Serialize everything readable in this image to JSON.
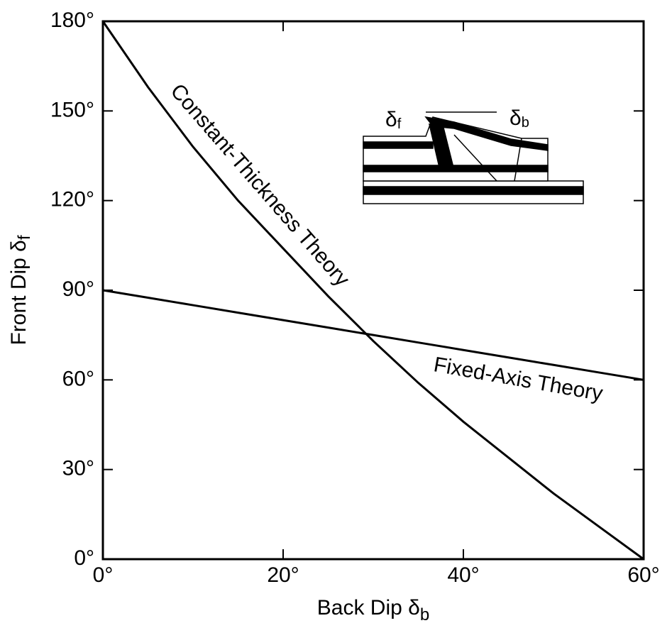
{
  "chart_data": {
    "type": "line",
    "x_label": {
      "text": "Back Dip δ",
      "subscript": "b"
    },
    "y_label": {
      "text": "Front Dip δ",
      "subscript": "f"
    },
    "x": [
      0,
      5,
      10,
      15,
      20,
      25,
      30,
      35,
      40,
      45,
      50,
      55,
      60
    ],
    "series": [
      {
        "name": "Constant-Thickness Theory",
        "color": "#000000",
        "values": [
          180,
          158,
          138,
          120,
          104,
          88,
          73,
          59,
          46,
          34,
          22,
          11,
          0
        ]
      },
      {
        "name": "Fixed-Axis Theory",
        "color": "#000000",
        "values": [
          90,
          87.5,
          85,
          82.5,
          80,
          77.5,
          75,
          72.5,
          70,
          67.5,
          65,
          62.5,
          60
        ]
      }
    ],
    "xlim": [
      0,
      60
    ],
    "ylim": [
      0,
      180
    ],
    "xticks": [
      {
        "value": 0,
        "label": "0°"
      },
      {
        "value": 20,
        "label": "20°"
      },
      {
        "value": 40,
        "label": "40°"
      },
      {
        "value": 60,
        "label": "60°"
      }
    ],
    "yticks": [
      {
        "value": 0,
        "label": "0°"
      },
      {
        "value": 30,
        "label": "30°"
      },
      {
        "value": 60,
        "label": "60°"
      },
      {
        "value": 90,
        "label": "90°"
      },
      {
        "value": 120,
        "label": "120°"
      },
      {
        "value": 150,
        "label": "150°"
      },
      {
        "value": 180,
        "label": "180°"
      }
    ],
    "inset_labels": [
      {
        "text": "δ",
        "subscript": "f"
      },
      {
        "text": "δ",
        "subscript": "b"
      }
    ]
  }
}
